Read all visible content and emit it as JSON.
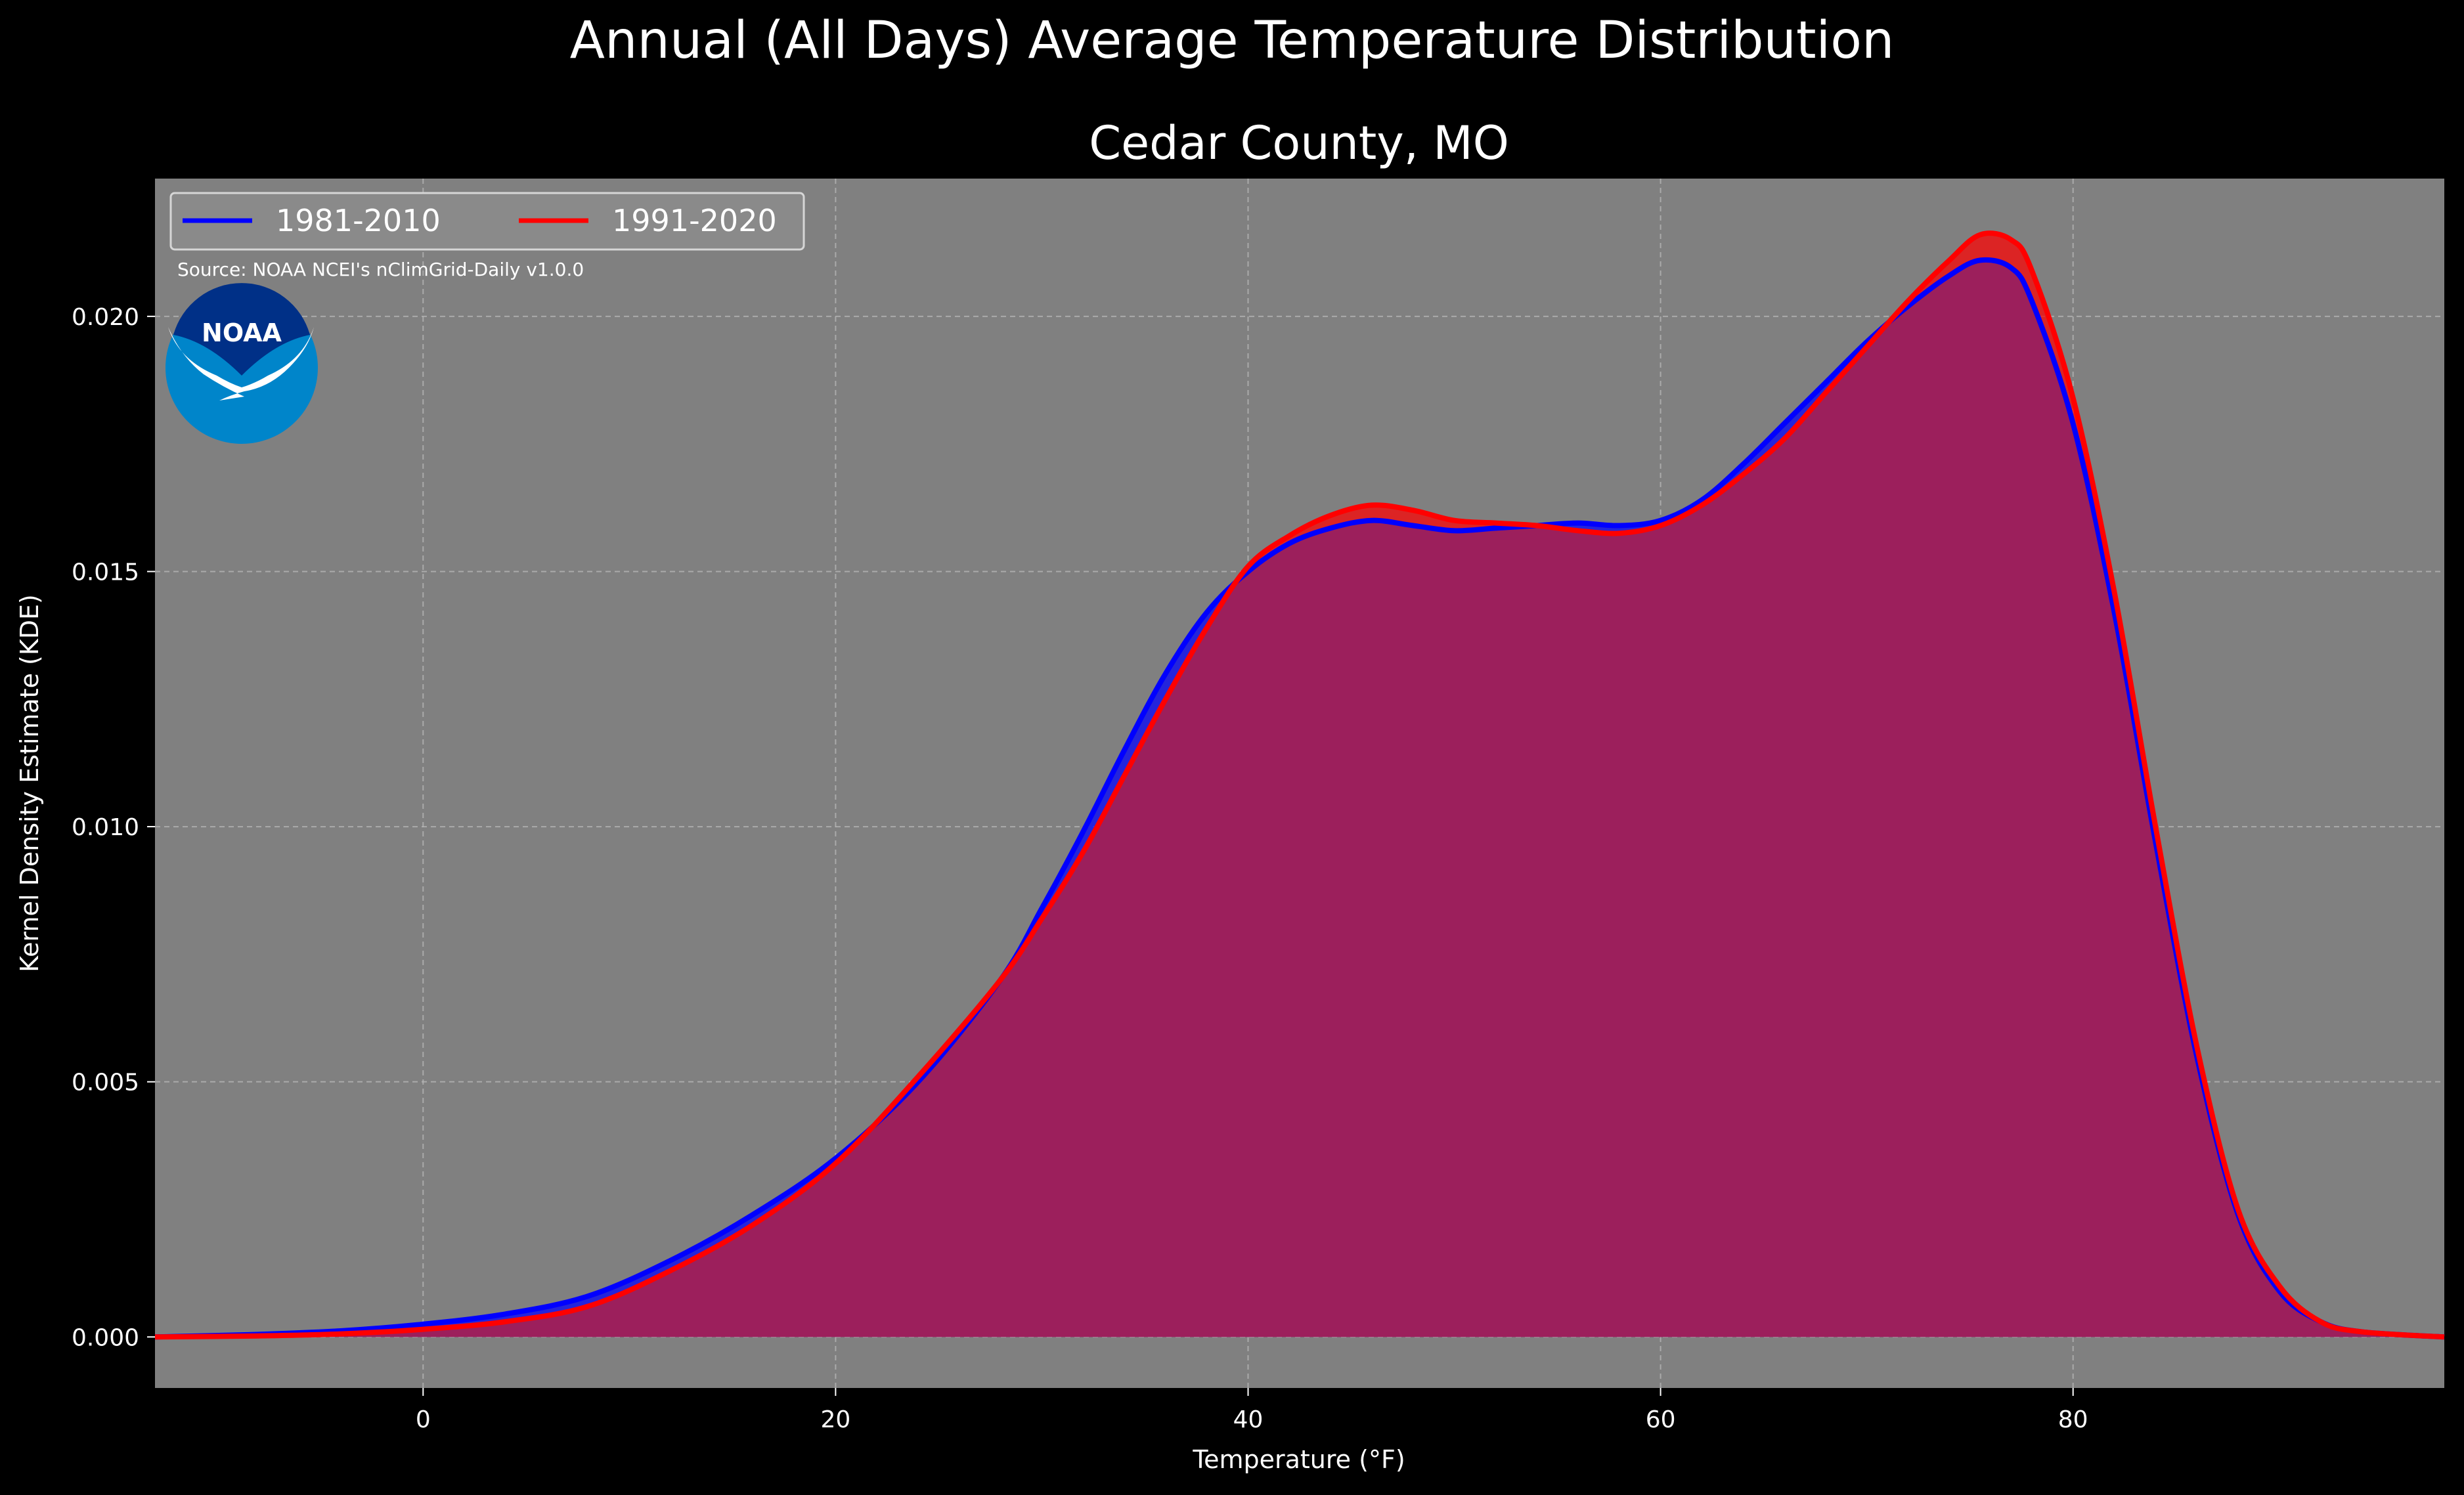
{
  "figure": {
    "suptitle": "Annual (All Days) Average Temperature Distribution",
    "source": "Source: NOAA NCEI's nClimGrid-Daily v1.0.0",
    "logo_text": "NOAA"
  },
  "colors": {
    "figure_bg": "#000000",
    "axes_bg": "#808080",
    "series_1981": "#0000ff",
    "series_1991": "#ff0000",
    "overlap_fill": "#9c1f5c",
    "logo_outer": "#0085ca",
    "logo_inner": "#003087"
  },
  "chart_data": {
    "type": "area",
    "title": "Cedar County, MO",
    "xlabel": "Temperature ($^\\circ$F)",
    "xlabel_display": "Temperature (°F)",
    "ylabel": "Kernel Density Estimate (KDE)",
    "xlim": [
      -13,
      98
    ],
    "ylim": [
      -0.001,
      0.0227
    ],
    "xticks": [
      0,
      20,
      40,
      60,
      80
    ],
    "xtick_labels": [
      "0",
      "20",
      "40",
      "60",
      "80"
    ],
    "yticks": [
      0.0,
      0.005,
      0.01,
      0.015,
      0.02
    ],
    "ytick_labels": [
      "0.000",
      "0.005",
      "0.010",
      "0.015",
      "0.020"
    ],
    "grid": true,
    "legend_position": "upper-left",
    "series": [
      {
        "name": "1981-2010",
        "color": "#0000ff",
        "x": [
          -13,
          -8,
          -4,
          0,
          4,
          8,
          12,
          16,
          20,
          24,
          28,
          30,
          32,
          34,
          36,
          38,
          40,
          42,
          44,
          46,
          48,
          50,
          52,
          54,
          56,
          58,
          60,
          62,
          64,
          66,
          68,
          70,
          72,
          74,
          75.5,
          77,
          78,
          80,
          82,
          84,
          86,
          88,
          90,
          92,
          94,
          98
        ],
        "y": [
          0.0,
          5e-05,
          0.00012,
          0.00025,
          0.00045,
          0.0008,
          0.0015,
          0.0024,
          0.0035,
          0.005,
          0.007,
          0.0084,
          0.0099,
          0.0115,
          0.013,
          0.0142,
          0.015,
          0.01555,
          0.01585,
          0.016,
          0.0159,
          0.0158,
          0.01585,
          0.0159,
          0.01595,
          0.0159,
          0.016,
          0.0164,
          0.0171,
          0.0179,
          0.0187,
          0.0195,
          0.0202,
          0.0208,
          0.0211,
          0.02095,
          0.0203,
          0.0179,
          0.0142,
          0.0097,
          0.0055,
          0.0024,
          0.0009,
          0.0003,
          0.0001,
          0.0
        ]
      },
      {
        "name": "1991-2020",
        "color": "#ff0000",
        "x": [
          -13,
          -8,
          -4,
          0,
          4,
          8,
          12,
          16,
          20,
          24,
          28,
          30,
          32,
          34,
          36,
          38,
          40,
          42,
          44,
          46,
          48,
          50,
          52,
          54,
          56,
          58,
          60,
          62,
          64,
          66,
          68,
          70,
          72,
          74,
          75.5,
          77,
          78,
          80,
          82,
          84,
          86,
          88,
          90,
          92,
          94,
          98
        ],
        "y": [
          0.0,
          2e-05,
          6e-05,
          0.00015,
          0.0003,
          0.0006,
          0.0013,
          0.0022,
          0.0034,
          0.0051,
          0.007,
          0.0082,
          0.0095,
          0.011,
          0.0125,
          0.0139,
          0.0151,
          0.0157,
          0.0161,
          0.0163,
          0.0162,
          0.016,
          0.01595,
          0.0159,
          0.0158,
          0.01575,
          0.0159,
          0.0163,
          0.0169,
          0.0176,
          0.0185,
          0.0194,
          0.0203,
          0.0211,
          0.0216,
          0.0215,
          0.0209,
          0.0184,
          0.0146,
          0.01,
          0.0057,
          0.0025,
          0.001,
          0.0003,
          0.0001,
          0.0
        ]
      }
    ]
  }
}
